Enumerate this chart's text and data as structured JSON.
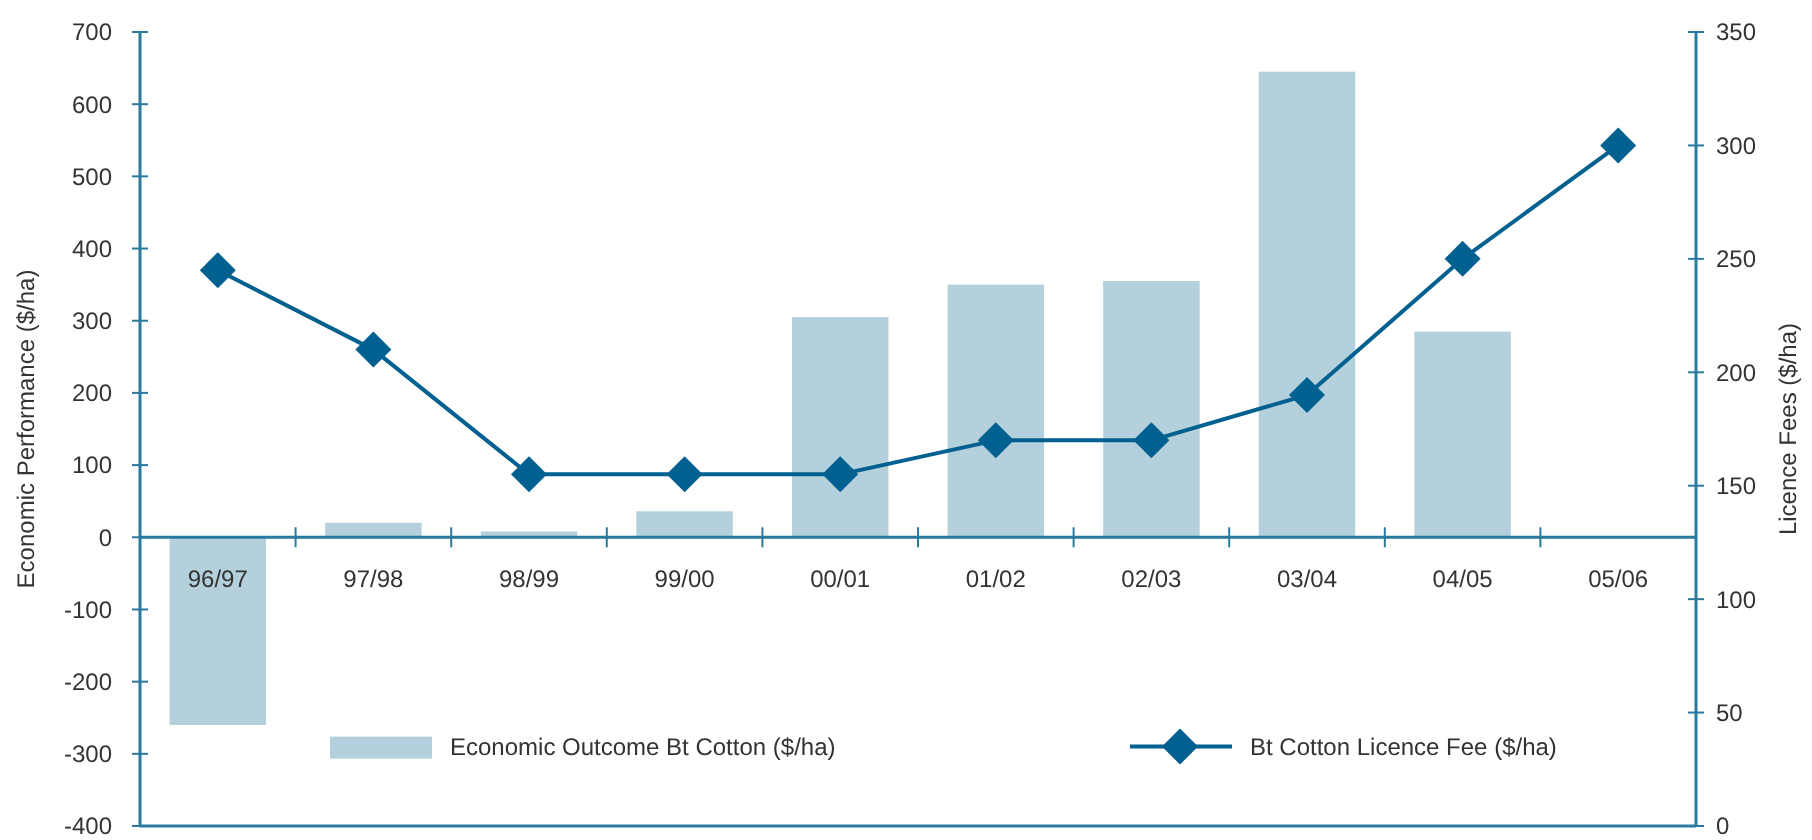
{
  "chart_data": {
    "type": "bar",
    "categories": [
      "96/97",
      "97/98",
      "98/99",
      "99/00",
      "00/01",
      "01/02",
      "02/03",
      "03/04",
      "04/05",
      "05/06"
    ],
    "series": [
      {
        "name": "Economic Outcome Bt Cotton ($/ha)",
        "color": "#b3d0dc",
        "values": [
          -260,
          20,
          8,
          36,
          305,
          350,
          355,
          645,
          285,
          null
        ]
      },
      {
        "name": "Bt Cotton Licence Fee ($/ha)",
        "type": "line",
        "axis": "y2",
        "color": "#00608f",
        "marker": "diamond",
        "values": [
          245,
          210,
          155,
          155,
          155,
          170,
          170,
          190,
          250,
          300
        ]
      }
    ],
    "ylabel": "Economic Performance ($/ha)",
    "y2label": "Licence Fees ($/ha)",
    "ylim": [
      -400,
      700
    ],
    "yticks": [
      -400,
      -300,
      -200,
      -100,
      0,
      100,
      200,
      300,
      400,
      500,
      600,
      700
    ],
    "y2lim": [
      0,
      350
    ],
    "y2ticks": [
      0,
      50,
      100,
      150,
      200,
      250,
      300,
      350
    ],
    "grid": false,
    "legend": "bottom"
  }
}
